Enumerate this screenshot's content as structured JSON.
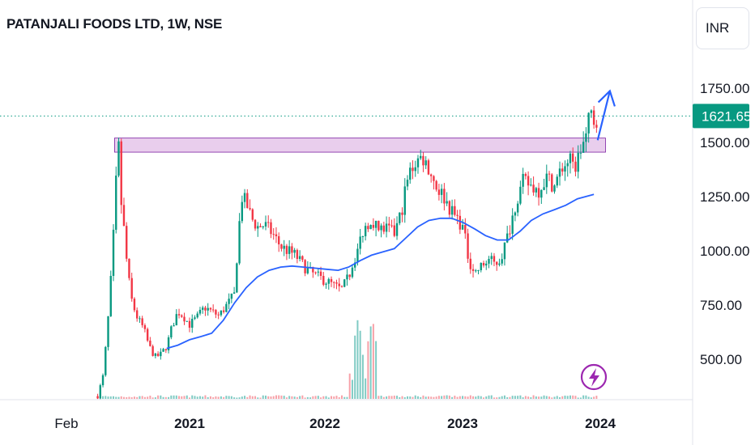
{
  "header": {
    "title": "PATANJALI FOODS LTD, 1W, NSE",
    "currency": "INR"
  },
  "chart_data": {
    "type": "candlestick",
    "symbol": "PATANJALI FOODS LTD",
    "interval": "1W",
    "exchange": "NSE",
    "currency": "INR",
    "y_ticks": [
      {
        "label": "1750.00",
        "value": 1750
      },
      {
        "label": "1500.00",
        "value": 1500
      },
      {
        "label": "1250.00",
        "value": 1250
      },
      {
        "label": "1000.00",
        "value": 1000
      },
      {
        "label": "750.00",
        "value": 750
      },
      {
        "label": "500.00",
        "value": 500
      }
    ],
    "x_ticks": [
      {
        "label": "Feb",
        "date": "2020-02-01",
        "bold": false
      },
      {
        "label": "2021",
        "date": "2021-01-01",
        "bold": true
      },
      {
        "label": "2022",
        "date": "2022-01-01",
        "bold": true
      },
      {
        "label": "2023",
        "date": "2023-01-01",
        "bold": true
      },
      {
        "label": "2024",
        "date": "2024-01-01",
        "bold": true
      }
    ],
    "last_price": {
      "label": "1621.65",
      "value": 1621.65,
      "color": "#089981"
    },
    "colors": {
      "up": "#089981",
      "down": "#f23645",
      "ma": "#2962ff",
      "zone_fill": "#e1bee7",
      "zone_border": "#7b1fa2",
      "arrow": "#2962ff",
      "lightning": "#9c27b0",
      "vol_up": "#80cbc4",
      "vol_down": "#f7a1a8"
    },
    "resistance_zone": {
      "from_date": "2020-06-15",
      "to_date": "2024-01-15",
      "top": 1520,
      "bottom": 1455
    },
    "arrow": [
      {
        "date": "2023-12-25",
        "price": 1510
      },
      {
        "date": "2024-01-05",
        "price": 1700
      }
    ],
    "price_path": [
      [
        "2020-05-01",
        330
      ],
      [
        "2020-05-15",
        420
      ],
      [
        "2020-05-25",
        600
      ],
      [
        "2020-06-02",
        780
      ],
      [
        "2020-06-10",
        1000
      ],
      [
        "2020-06-18",
        1280
      ],
      [
        "2020-06-25",
        1520
      ],
      [
        "2020-07-01",
        1250
      ],
      [
        "2020-07-10",
        1100
      ],
      [
        "2020-07-20",
        900
      ],
      [
        "2020-08-01",
        760
      ],
      [
        "2020-08-15",
        690
      ],
      [
        "2020-09-01",
        640
      ],
      [
        "2020-09-15",
        560
      ],
      [
        "2020-10-01",
        510
      ],
      [
        "2020-10-15",
        520
      ],
      [
        "2020-11-01",
        560
      ],
      [
        "2020-11-15",
        650
      ],
      [
        "2020-12-01",
        720
      ],
      [
        "2020-12-15",
        700
      ],
      [
        "2021-01-01",
        660
      ],
      [
        "2021-01-20",
        690
      ],
      [
        "2021-02-10",
        740
      ],
      [
        "2021-03-01",
        720
      ],
      [
        "2021-03-20",
        700
      ],
      [
        "2021-04-10",
        750
      ],
      [
        "2021-05-01",
        800
      ],
      [
        "2021-05-10",
        1050
      ],
      [
        "2021-05-20",
        1250
      ],
      [
        "2021-06-01",
        1220
      ],
      [
        "2021-06-15",
        1150
      ],
      [
        "2021-07-01",
        1110
      ],
      [
        "2021-07-20",
        1120
      ],
      [
        "2021-08-10",
        1080
      ],
      [
        "2021-09-01",
        1020
      ],
      [
        "2021-09-20",
        1000
      ],
      [
        "2021-10-10",
        980
      ],
      [
        "2021-11-01",
        930
      ],
      [
        "2021-11-20",
        900
      ],
      [
        "2021-12-10",
        880
      ],
      [
        "2022-01-01",
        860
      ],
      [
        "2022-01-20",
        840
      ],
      [
        "2022-02-10",
        820
      ],
      [
        "2022-03-01",
        880
      ],
      [
        "2022-03-20",
        980
      ],
      [
        "2022-04-10",
        1100
      ],
      [
        "2022-05-01",
        1150
      ],
      [
        "2022-05-20",
        1100
      ],
      [
        "2022-06-10",
        1100
      ],
      [
        "2022-07-01",
        1080
      ],
      [
        "2022-07-20",
        1180
      ],
      [
        "2022-08-01",
        1300
      ],
      [
        "2022-08-15",
        1380
      ],
      [
        "2022-09-01",
        1420
      ],
      [
        "2022-09-15",
        1430
      ],
      [
        "2022-10-01",
        1380
      ],
      [
        "2022-10-20",
        1300
      ],
      [
        "2022-11-10",
        1250
      ],
      [
        "2022-12-01",
        1180
      ],
      [
        "2022-12-20",
        1140
      ],
      [
        "2023-01-01",
        1100
      ],
      [
        "2023-01-15",
        960
      ],
      [
        "2023-02-01",
        900
      ],
      [
        "2023-02-20",
        930
      ],
      [
        "2023-03-10",
        960
      ],
      [
        "2023-03-25",
        940
      ],
      [
        "2023-04-10",
        960
      ],
      [
        "2023-05-01",
        1080
      ],
      [
        "2023-05-20",
        1220
      ],
      [
        "2023-06-10",
        1320
      ],
      [
        "2023-07-01",
        1300
      ],
      [
        "2023-07-20",
        1280
      ],
      [
        "2023-08-10",
        1340
      ],
      [
        "2023-09-01",
        1300
      ],
      [
        "2023-09-20",
        1380
      ],
      [
        "2023-10-10",
        1420
      ],
      [
        "2023-10-25",
        1380
      ],
      [
        "2023-11-10",
        1470
      ],
      [
        "2023-11-25",
        1530
      ],
      [
        "2023-12-05",
        1640
      ],
      [
        "2023-12-15",
        1600
      ],
      [
        "2023-12-25",
        1621.65
      ]
    ],
    "moving_average": [
      [
        "2020-11-01",
        550
      ],
      [
        "2020-12-01",
        565
      ],
      [
        "2021-01-01",
        590
      ],
      [
        "2021-02-01",
        605
      ],
      [
        "2021-03-01",
        620
      ],
      [
        "2021-04-01",
        680
      ],
      [
        "2021-05-01",
        760
      ],
      [
        "2021-06-01",
        830
      ],
      [
        "2021-07-01",
        880
      ],
      [
        "2021-08-01",
        910
      ],
      [
        "2021-09-01",
        925
      ],
      [
        "2021-10-01",
        930
      ],
      [
        "2021-11-01",
        925
      ],
      [
        "2021-12-01",
        920
      ],
      [
        "2022-01-01",
        915
      ],
      [
        "2022-02-01",
        910
      ],
      [
        "2022-03-01",
        925
      ],
      [
        "2022-04-01",
        955
      ],
      [
        "2022-05-01",
        980
      ],
      [
        "2022-06-01",
        995
      ],
      [
        "2022-07-01",
        1010
      ],
      [
        "2022-08-01",
        1060
      ],
      [
        "2022-09-01",
        1110
      ],
      [
        "2022-10-01",
        1140
      ],
      [
        "2022-11-01",
        1150
      ],
      [
        "2022-12-01",
        1150
      ],
      [
        "2023-01-01",
        1130
      ],
      [
        "2023-02-01",
        1100
      ],
      [
        "2023-03-01",
        1070
      ],
      [
        "2023-04-01",
        1050
      ],
      [
        "2023-05-01",
        1050
      ],
      [
        "2023-06-01",
        1090
      ],
      [
        "2023-07-01",
        1140
      ],
      [
        "2023-08-01",
        1170
      ],
      [
        "2023-09-01",
        1190
      ],
      [
        "2023-10-01",
        1210
      ],
      [
        "2023-11-01",
        1240
      ],
      [
        "2023-12-15",
        1260
      ]
    ]
  }
}
